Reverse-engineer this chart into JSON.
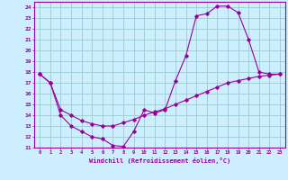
{
  "xlabel": "Windchill (Refroidissement éolien,°C)",
  "bg_color": "#cceeff",
  "line_color": "#990099",
  "grid_color": "#99cccc",
  "xlim": [
    -0.5,
    23.5
  ],
  "ylim": [
    11,
    24.5
  ],
  "xticks": [
    0,
    1,
    2,
    3,
    4,
    5,
    6,
    7,
    8,
    9,
    10,
    11,
    12,
    13,
    14,
    15,
    16,
    17,
    18,
    19,
    20,
    21,
    22,
    23
  ],
  "yticks": [
    11,
    12,
    13,
    14,
    15,
    16,
    17,
    18,
    19,
    20,
    21,
    22,
    23,
    24
  ],
  "line1_x": [
    0,
    1,
    2,
    3,
    4,
    5,
    6,
    7,
    8,
    9,
    10,
    11,
    12,
    13,
    14,
    15,
    16,
    17,
    18,
    19,
    20,
    21,
    22,
    23
  ],
  "line1_y": [
    17.8,
    17.0,
    14.0,
    13.0,
    12.5,
    12.0,
    11.8,
    11.2,
    11.1,
    12.5,
    14.5,
    14.2,
    14.5,
    17.2,
    19.5,
    23.2,
    23.4,
    24.1,
    24.1,
    23.5,
    21.0,
    18.0,
    17.8,
    17.8
  ],
  "line2_x": [
    0,
    1,
    2,
    3,
    4,
    5,
    6,
    7,
    8,
    9,
    10,
    11,
    12,
    13,
    14,
    15,
    16,
    17,
    18,
    19,
    20,
    21,
    22,
    23
  ],
  "line2_y": [
    17.8,
    17.0,
    14.5,
    14.0,
    13.5,
    13.2,
    13.0,
    13.0,
    13.3,
    13.6,
    14.0,
    14.3,
    14.6,
    15.0,
    15.4,
    15.8,
    16.2,
    16.6,
    17.0,
    17.2,
    17.4,
    17.6,
    17.7,
    17.8
  ]
}
